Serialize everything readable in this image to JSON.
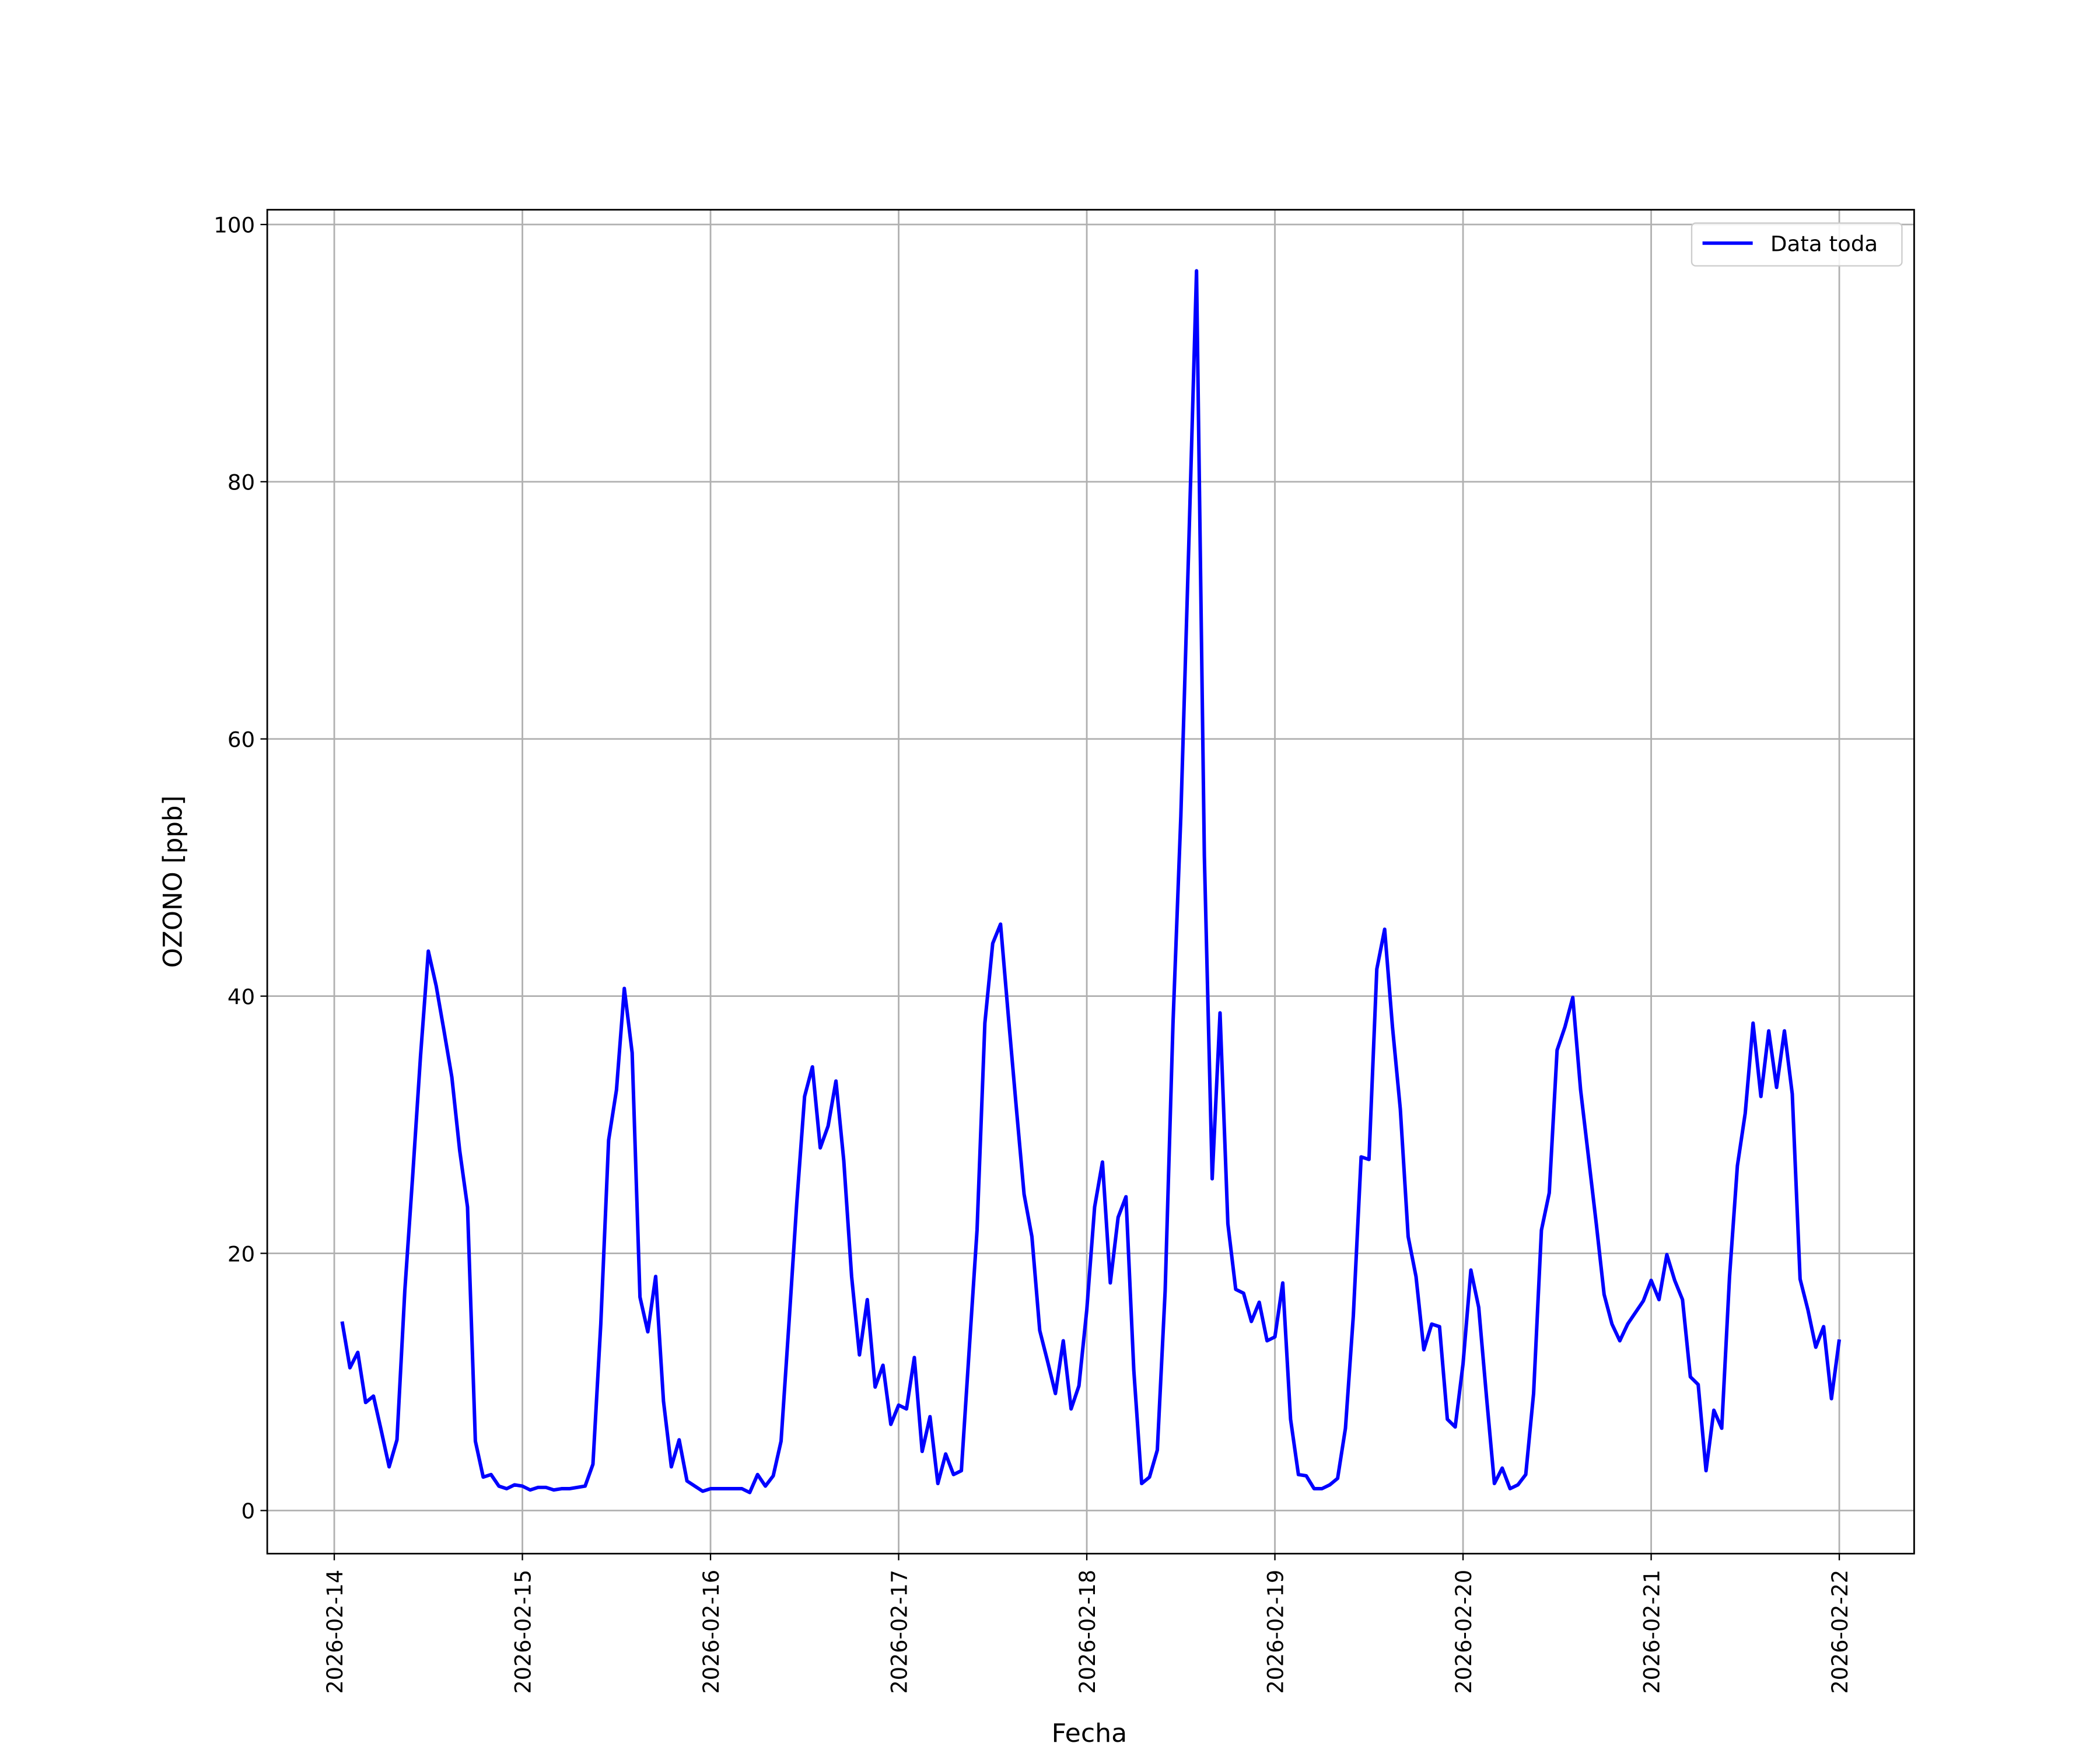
{
  "chart_data": {
    "type": "line",
    "xlabel": "Fecha",
    "ylabel": "OZONO [ppb]",
    "x": [
      "2026-02-14 01:00",
      "2026-02-14 02:00",
      "2026-02-14 03:00",
      "2026-02-14 04:00",
      "2026-02-14 05:00",
      "2026-02-14 06:00",
      "2026-02-14 07:00",
      "2026-02-14 08:00",
      "2026-02-14 09:00",
      "2026-02-14 10:00",
      "2026-02-14 11:00",
      "2026-02-14 12:00",
      "2026-02-14 13:00",
      "2026-02-14 14:00",
      "2026-02-14 15:00",
      "2026-02-14 16:00",
      "2026-02-14 17:00",
      "2026-02-14 18:00",
      "2026-02-14 19:00",
      "2026-02-14 20:00",
      "2026-02-14 21:00",
      "2026-02-14 22:00",
      "2026-02-14 23:00",
      "2026-02-15 00:00",
      "2026-02-15 01:00",
      "2026-02-15 02:00",
      "2026-02-15 03:00",
      "2026-02-15 04:00",
      "2026-02-15 05:00",
      "2026-02-15 06:00",
      "2026-02-15 07:00",
      "2026-02-15 08:00",
      "2026-02-15 09:00",
      "2026-02-15 10:00",
      "2026-02-15 11:00",
      "2026-02-15 12:00",
      "2026-02-15 13:00",
      "2026-02-15 14:00",
      "2026-02-15 15:00",
      "2026-02-15 16:00",
      "2026-02-15 17:00",
      "2026-02-15 18:00",
      "2026-02-15 19:00",
      "2026-02-15 20:00",
      "2026-02-15 21:00",
      "2026-02-15 22:00",
      "2026-02-15 23:00",
      "2026-02-16 00:00",
      "2026-02-16 01:00",
      "2026-02-16 02:00",
      "2026-02-16 03:00",
      "2026-02-16 04:00",
      "2026-02-16 05:00",
      "2026-02-16 06:00",
      "2026-02-16 07:00",
      "2026-02-16 08:00",
      "2026-02-16 09:00",
      "2026-02-16 10:00",
      "2026-02-16 11:00",
      "2026-02-16 12:00",
      "2026-02-16 13:00",
      "2026-02-16 14:00",
      "2026-02-16 15:00",
      "2026-02-16 16:00",
      "2026-02-16 17:00",
      "2026-02-16 18:00",
      "2026-02-16 19:00",
      "2026-02-16 20:00",
      "2026-02-16 21:00",
      "2026-02-16 22:00",
      "2026-02-16 23:00",
      "2026-02-17 00:00",
      "2026-02-17 01:00",
      "2026-02-17 02:00",
      "2026-02-17 03:00",
      "2026-02-17 04:00",
      "2026-02-17 05:00",
      "2026-02-17 06:00",
      "2026-02-17 07:00",
      "2026-02-17 08:00",
      "2026-02-17 09:00",
      "2026-02-17 10:00",
      "2026-02-17 11:00",
      "2026-02-17 12:00",
      "2026-02-17 13:00",
      "2026-02-17 14:00",
      "2026-02-17 15:00",
      "2026-02-17 16:00",
      "2026-02-17 17:00",
      "2026-02-17 18:00",
      "2026-02-17 19:00",
      "2026-02-17 20:00",
      "2026-02-17 21:00",
      "2026-02-17 22:00",
      "2026-02-17 23:00",
      "2026-02-18 00:00",
      "2026-02-18 01:00",
      "2026-02-18 02:00",
      "2026-02-18 03:00",
      "2026-02-18 04:00",
      "2026-02-18 05:00",
      "2026-02-18 06:00",
      "2026-02-18 07:00",
      "2026-02-18 08:00",
      "2026-02-18 09:00",
      "2026-02-18 10:00",
      "2026-02-18 11:00",
      "2026-02-18 12:00",
      "2026-02-18 13:00",
      "2026-02-18 14:00",
      "2026-02-18 15:00",
      "2026-02-18 16:00",
      "2026-02-18 17:00",
      "2026-02-18 18:00",
      "2026-02-18 19:00",
      "2026-02-18 20:00",
      "2026-02-18 21:00",
      "2026-02-18 22:00",
      "2026-02-18 23:00",
      "2026-02-19 00:00",
      "2026-02-19 01:00",
      "2026-02-19 02:00",
      "2026-02-19 03:00",
      "2026-02-19 04:00",
      "2026-02-19 05:00",
      "2026-02-19 06:00",
      "2026-02-19 07:00",
      "2026-02-19 08:00",
      "2026-02-19 09:00",
      "2026-02-19 10:00",
      "2026-02-19 11:00",
      "2026-02-19 12:00",
      "2026-02-19 13:00",
      "2026-02-19 14:00",
      "2026-02-19 15:00",
      "2026-02-19 16:00",
      "2026-02-19 17:00",
      "2026-02-19 18:00",
      "2026-02-19 19:00",
      "2026-02-19 20:00",
      "2026-02-19 21:00",
      "2026-02-19 22:00",
      "2026-02-19 23:00",
      "2026-02-20 00:00",
      "2026-02-20 01:00",
      "2026-02-20 02:00",
      "2026-02-20 03:00",
      "2026-02-20 04:00",
      "2026-02-20 05:00",
      "2026-02-20 06:00",
      "2026-02-20 07:00",
      "2026-02-20 08:00",
      "2026-02-20 09:00",
      "2026-02-20 10:00",
      "2026-02-20 11:00",
      "2026-02-20 12:00",
      "2026-02-20 13:00",
      "2026-02-20 14:00",
      "2026-02-20 15:00",
      "2026-02-20 16:00",
      "2026-02-20 17:00",
      "2026-02-20 18:00",
      "2026-02-20 19:00",
      "2026-02-20 20:00",
      "2026-02-20 21:00",
      "2026-02-20 22:00",
      "2026-02-20 23:00",
      "2026-02-21 00:00",
      "2026-02-21 01:00",
      "2026-02-21 02:00",
      "2026-02-21 03:00",
      "2026-02-21 04:00",
      "2026-02-21 05:00",
      "2026-02-21 06:00",
      "2026-02-21 07:00",
      "2026-02-21 08:00",
      "2026-02-21 09:00",
      "2026-02-21 10:00",
      "2026-02-21 11:00",
      "2026-02-21 12:00",
      "2026-02-21 13:00",
      "2026-02-21 14:00",
      "2026-02-21 15:00",
      "2026-02-21 16:00",
      "2026-02-21 17:00",
      "2026-02-21 18:00",
      "2026-02-21 19:00",
      "2026-02-21 20:00",
      "2026-02-21 21:00",
      "2026-02-21 22:00",
      "2026-02-21 23:00",
      "2026-02-22 00:00"
    ],
    "series": [
      {
        "name": "Data toda",
        "color": "#0000ff",
        "values": [
          14.7,
          11.1,
          12.3,
          8.4,
          8.9,
          6.2,
          3.4,
          5.5,
          17.1,
          26,
          35.3,
          43.5,
          40.8,
          37.3,
          33.7,
          28,
          23.6,
          5.4,
          2.6,
          2.8,
          1.9,
          1.7,
          2.0,
          1.9,
          1.6,
          1.8,
          1.8,
          1.6,
          1.7,
          1.7,
          1.8,
          1.9,
          3.6,
          14.5,
          28.8,
          32.7,
          40.6,
          35.6,
          16.6,
          13.9,
          18.2,
          8.5,
          3.4,
          5.5,
          2.3,
          1.9,
          1.5,
          1.7,
          1.7,
          1.7,
          1.7,
          1.7,
          1.4,
          2.8,
          1.9,
          2.7,
          5.4,
          14.5,
          23.9,
          32.2,
          34.5,
          28.2,
          29.9,
          33.4,
          27.2,
          18.2,
          12.1,
          16.4,
          9.6,
          11.3,
          6.7,
          8.2,
          7.9,
          11.9,
          4.6,
          7.3,
          2.1,
          4.4,
          2.8,
          3.1,
          12.5,
          21.8,
          37.9,
          44.1,
          45.6,
          38.4,
          31.4,
          24.6,
          21.3,
          14,
          11.6,
          9.1,
          13.2,
          7.9,
          9.7,
          15.6,
          23.6,
          27.1,
          17.7,
          22.8,
          24.4,
          10.9,
          2.1,
          2.6,
          4.7,
          17.1,
          37.9,
          54,
          74.8,
          96.4,
          50.9,
          25.8,
          38.7,
          22.3,
          17.2,
          16.9,
          14.7,
          16.2,
          13.2,
          13.5,
          17.7,
          7.1,
          2.8,
          2.7,
          1.7,
          1.7,
          2.0,
          2.5,
          6.4,
          15.1,
          27.5,
          27.3,
          42.1,
          45.2,
          37.6,
          31.2,
          21.3,
          18.2,
          12.5,
          14.5,
          14.3,
          7.1,
          6.5,
          11.4,
          18.7,
          15.8,
          8.8,
          2.1,
          3.3,
          1.7,
          2.0,
          2.8,
          9.1,
          21.8,
          24.7,
          35.8,
          37.6,
          39.9,
          32.7,
          27.5,
          22.3,
          16.8,
          14.5,
          13.2,
          14.5,
          15.4,
          16.3,
          17.9,
          16.4,
          19.9,
          17.9,
          16.4,
          10.4,
          9.8,
          3.1,
          7.8,
          6.4,
          18.2,
          26.8,
          30.9,
          37.9,
          32.2,
          37.3,
          32.9,
          37.3,
          32.4,
          18,
          15.6,
          12.7,
          14.3,
          8.7,
          13.3
        ]
      }
    ],
    "xlim": [
      "2026-02-13 15:27",
      "2026-02-22 09:33"
    ],
    "xticks": [
      "2026-02-14",
      "2026-02-15",
      "2026-02-16",
      "2026-02-17",
      "2026-02-18",
      "2026-02-19",
      "2026-02-20",
      "2026-02-21",
      "2026-02-22"
    ],
    "ylim": [
      -3.35,
      101.15
    ],
    "yticks": [
      0,
      20,
      40,
      60,
      80,
      100
    ],
    "grid": true,
    "legend": "upper right"
  }
}
